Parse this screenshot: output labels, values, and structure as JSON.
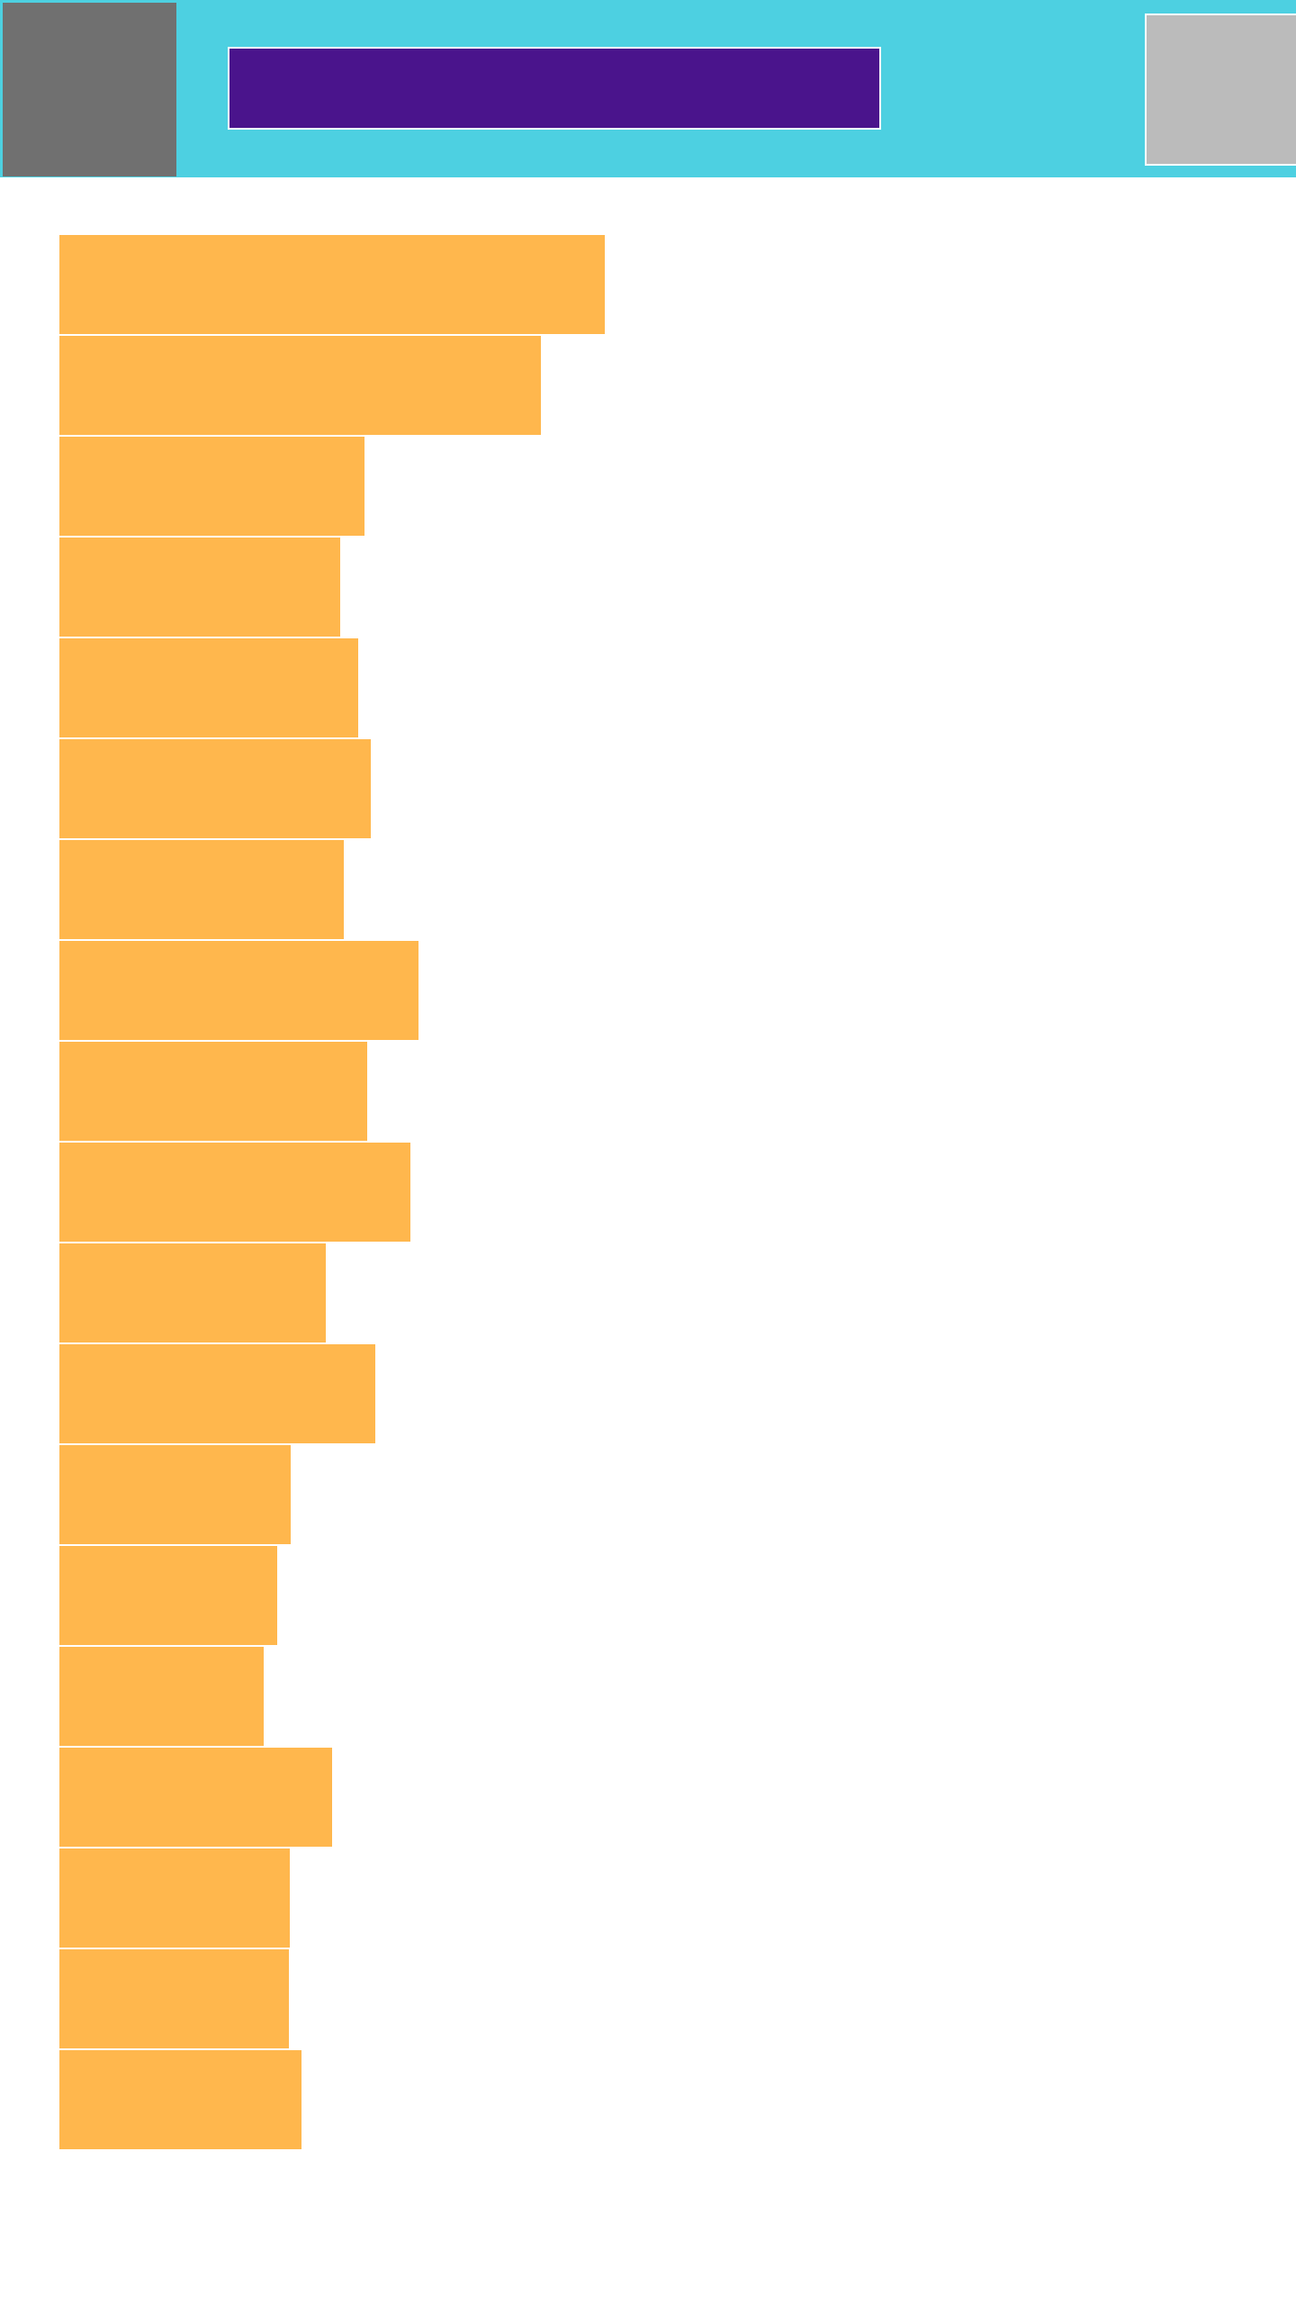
{
  "colors": {
    "header_background": "#4dd0e1",
    "menu_block": "#707070",
    "title_bar": "#4a148c",
    "action_block": "#bbbbbb",
    "list_item": "#ffb74d",
    "page_background": "#ffffff"
  },
  "list": {
    "items": [
      {
        "fill": 1.0
      },
      {
        "fill": 0.883
      },
      {
        "fill": 0.559
      },
      {
        "fill": 0.515
      },
      {
        "fill": 0.548
      },
      {
        "fill": 0.571
      },
      {
        "fill": 0.521
      },
      {
        "fill": 0.658
      },
      {
        "fill": 0.564
      },
      {
        "fill": 0.644
      },
      {
        "fill": 0.489
      },
      {
        "fill": 0.58
      },
      {
        "fill": 0.424
      },
      {
        "fill": 0.399
      },
      {
        "fill": 0.375
      },
      {
        "fill": 0.5
      },
      {
        "fill": 0.423
      },
      {
        "fill": 0.42
      },
      {
        "fill": 0.444
      }
    ]
  }
}
